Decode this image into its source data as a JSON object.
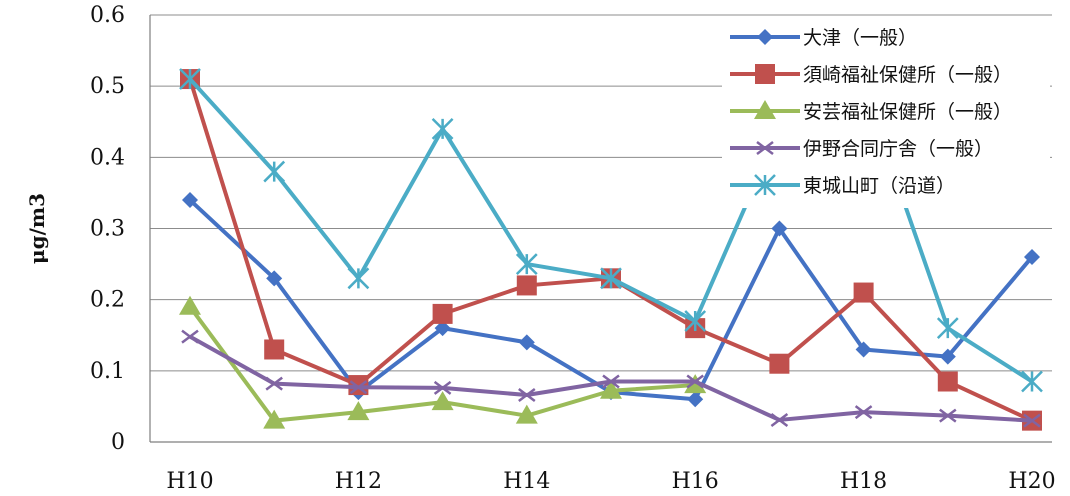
{
  "chart_data": {
    "type": "line",
    "title": "",
    "xlabel": "",
    "ylabel": "μg/m3",
    "ylim": [
      0,
      0.6
    ],
    "yticks": [
      "0",
      "0.1",
      "0.2",
      "0.3",
      "0.4",
      "0.5",
      "0.6"
    ],
    "categories": [
      "H10",
      "H11",
      "H12",
      "H13",
      "H14",
      "H15",
      "H16",
      "H17",
      "H18",
      "H19",
      "H20"
    ],
    "xtick_labels": [
      "H10",
      "",
      "H12",
      "",
      "H14",
      "",
      "H16",
      "",
      "H18",
      "",
      "H20"
    ],
    "grid": "horizontal",
    "legend_position": "top-right",
    "series": [
      {
        "name": "大津（一般）",
        "color": "#4472C4",
        "marker": "diamond",
        "values": [
          0.34,
          0.23,
          0.07,
          0.16,
          0.14,
          0.07,
          0.06,
          0.3,
          0.13,
          0.12,
          0.26
        ]
      },
      {
        "name": "須崎福祉保健所（一般）",
        "color": "#C0504D",
        "marker": "square",
        "values": [
          0.51,
          0.13,
          0.08,
          0.18,
          0.22,
          0.23,
          0.16,
          0.11,
          0.21,
          0.085,
          0.03
        ]
      },
      {
        "name": "安芸福祉保健所（一般）",
        "color": "#9BBB59",
        "marker": "triangle",
        "values": [
          0.19,
          0.03,
          0.042,
          0.056,
          0.037,
          0.072,
          0.08,
          null,
          null,
          null,
          null
        ]
      },
      {
        "name": "伊野合同庁舎（一般）",
        "color": "#8064A2",
        "marker": "x",
        "values": [
          0.148,
          0.082,
          0.077,
          0.076,
          0.066,
          0.085,
          0.085,
          0.031,
          0.042,
          0.037,
          0.03
        ]
      },
      {
        "name": "東城山町（沿道）",
        "color": "#4BACC6",
        "marker": "star",
        "values": [
          0.51,
          0.38,
          0.23,
          0.44,
          0.25,
          0.23,
          0.17,
          0.44,
          0.5,
          0.16,
          0.085
        ]
      }
    ]
  }
}
